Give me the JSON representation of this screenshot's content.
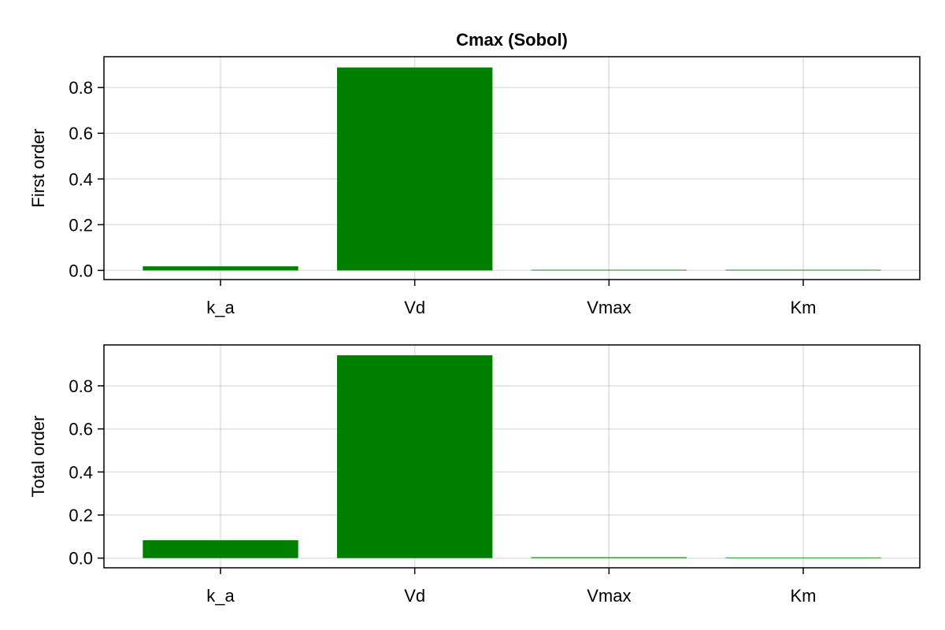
{
  "chart_data": [
    {
      "type": "bar",
      "title": "Cmax (Sobol)",
      "xlabel": "",
      "ylabel": "First order",
      "categories": [
        "k_a",
        "Vd",
        "Vmax",
        "Km"
      ],
      "values": [
        0.018,
        0.888,
        0.002,
        0.001
      ],
      "ylim": [
        -0.04,
        0.935
      ],
      "yticks": [
        "0.0",
        "0.2",
        "0.4",
        "0.6",
        "0.8"
      ],
      "grid": true,
      "bar_color": "#008000"
    },
    {
      "type": "bar",
      "title": "",
      "xlabel": "",
      "ylabel": "Total order",
      "categories": [
        "k_a",
        "Vd",
        "Vmax",
        "Km"
      ],
      "values": [
        0.083,
        0.942,
        0.004,
        0.002
      ],
      "ylim": [
        -0.045,
        0.99
      ],
      "yticks": [
        "0.0",
        "0.2",
        "0.4",
        "0.6",
        "0.8"
      ],
      "grid": true,
      "bar_color": "#008000"
    }
  ]
}
